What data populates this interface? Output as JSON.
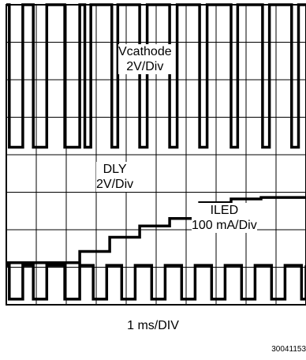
{
  "chart_data": {
    "type": "line",
    "title": "",
    "xlabel": "1 ms/DIV",
    "ylabel": "",
    "grid": true,
    "x_divisions": 10,
    "y_divisions": 8,
    "series": [
      {
        "name": "Vcathode",
        "label": "Vcathode\n2V/Div",
        "scale": "2V/Div",
        "high_div": 8.0,
        "low_div": 4.2,
        "pulses_ms": [
          [
            0.1,
            0.55
          ],
          [
            0.9,
            1.35
          ],
          [
            1.95,
            2.45
          ],
          [
            2.62,
            2.82
          ],
          [
            3.52,
            3.72
          ],
          [
            4.45,
            4.7
          ],
          [
            5.45,
            5.7
          ],
          [
            6.45,
            6.7
          ],
          [
            7.5,
            7.72
          ],
          [
            8.55,
            8.78
          ],
          [
            9.52,
            9.75
          ]
        ]
      },
      {
        "name": "DLY",
        "label": "DLY\n2V/Div",
        "scale": "2V/Div",
        "steps": [
          [
            0,
            1.12
          ],
          [
            2.45,
            1.12
          ],
          [
            2.45,
            1.42
          ],
          [
            3.45,
            1.42
          ],
          [
            3.45,
            1.8
          ],
          [
            4.45,
            1.8
          ],
          [
            4.45,
            2.1
          ],
          [
            5.45,
            2.1
          ],
          [
            5.45,
            2.3
          ],
          [
            6.45,
            2.3
          ],
          [
            6.45,
            2.72
          ],
          [
            7.5,
            2.72
          ],
          [
            7.5,
            2.82
          ],
          [
            8.5,
            2.82
          ],
          [
            8.5,
            2.86
          ],
          [
            10,
            2.86
          ]
        ]
      },
      {
        "name": "ILED",
        "label": "ILED\n100 mA/Div",
        "scale": "100 mA/Div",
        "high_div": 1.05,
        "low_div": 0.15,
        "pulses_ms": [
          [
            0.1,
            0.55
          ],
          [
            0.9,
            1.35
          ],
          [
            1.95,
            2.45
          ],
          [
            2.9,
            3.35
          ],
          [
            3.85,
            4.3
          ],
          [
            4.85,
            5.3
          ],
          [
            5.85,
            6.3
          ],
          [
            6.85,
            7.3
          ],
          [
            7.85,
            8.3
          ],
          [
            8.85,
            9.3
          ],
          [
            9.85,
            10.0
          ]
        ]
      }
    ]
  },
  "annotations": {
    "vcathode_line1": "Vcathode",
    "vcathode_line2": "2V/Div",
    "dly_line1": "DLY",
    "dly_line2": "2V/Div",
    "iled_line1": "ILED",
    "iled_line2": "100 mA/Div"
  },
  "figure_id": "30041153"
}
